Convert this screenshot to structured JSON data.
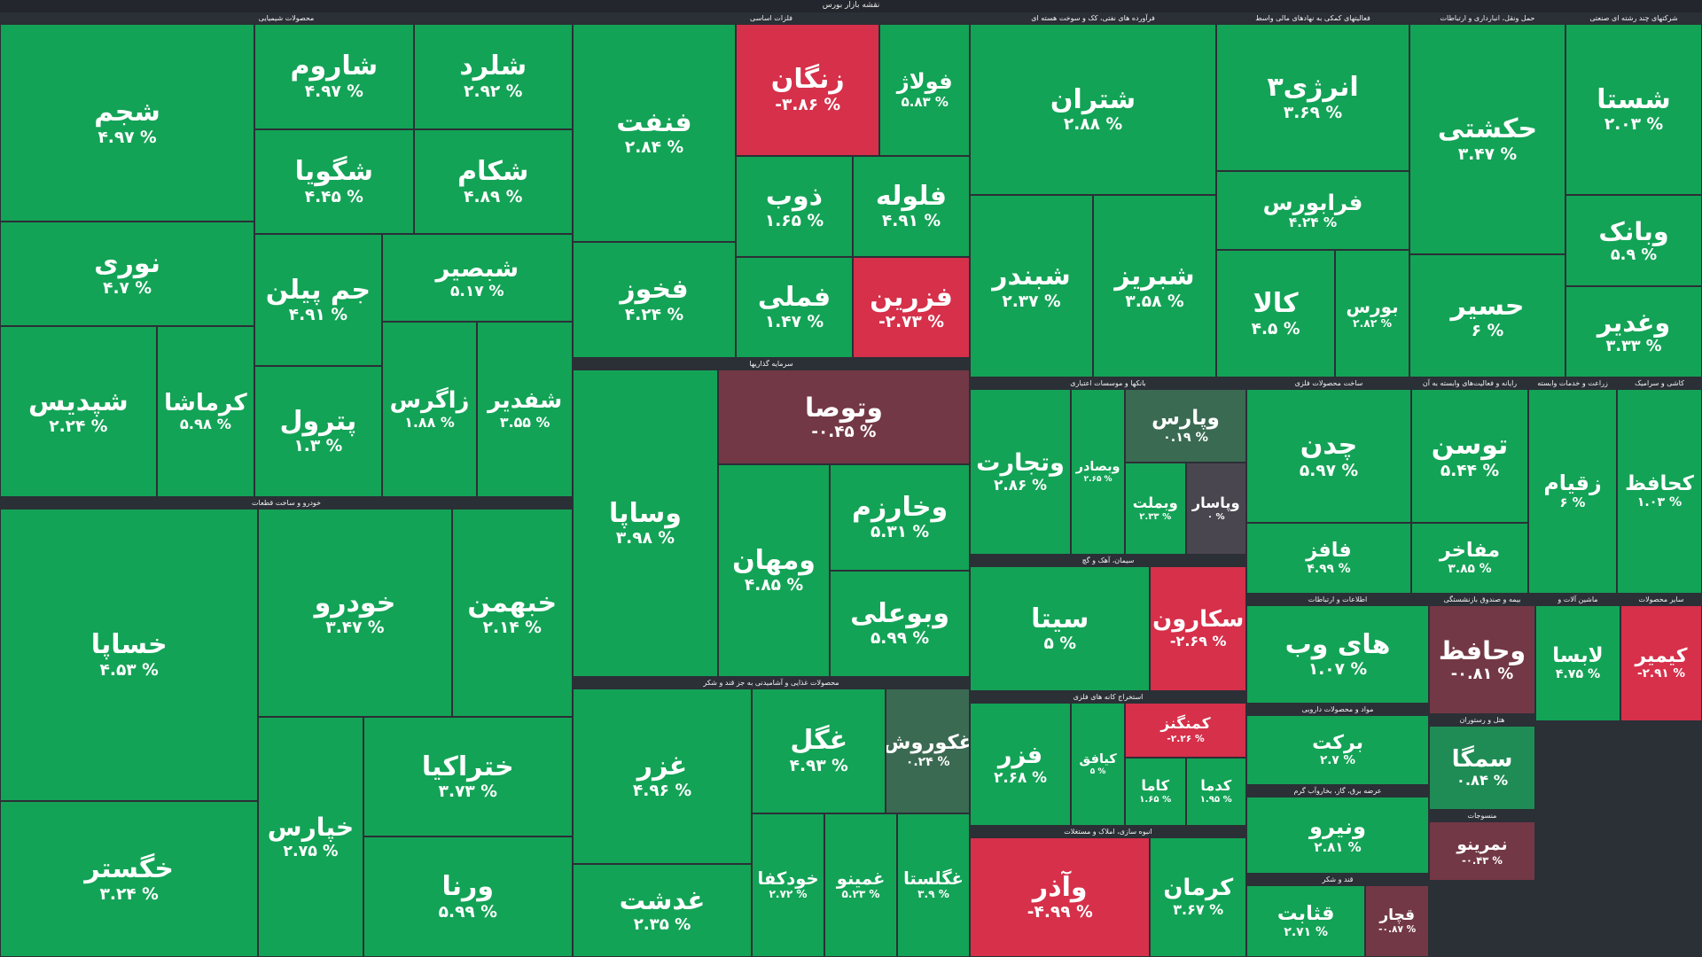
{
  "page": {
    "title": "نقشه بازار بورس"
  },
  "colors": {
    "up": "#13a356",
    "up_soft": "#1f8c55",
    "flat": "#3b6a52",
    "neutral": "#4a4650",
    "down": "#d6304a",
    "down_soft": "#733845"
  },
  "chart_data": {
    "type": "treemap",
    "title": "نقشه بازار بورس",
    "sectors": [
      {
        "name": "محصولات شیمیایی",
        "stocks": [
          {
            "symbol": "شجم",
            "change": "۴.۹۷ %",
            "value": 4.97
          },
          {
            "symbol": "نوری",
            "change": "۴.۷ %",
            "value": 4.7
          },
          {
            "symbol": "شپدیس",
            "change": "۲.۲۴ %",
            "value": 2.24
          },
          {
            "symbol": "کرماشا",
            "change": "۵.۹۸ %",
            "value": 5.98
          },
          {
            "symbol": "شاروم",
            "change": "۴.۹۷ %",
            "value": 4.97
          },
          {
            "symbol": "شگویا",
            "change": "۴.۴۵ %",
            "value": 4.45
          },
          {
            "symbol": "شلرد",
            "change": "۲.۹۲ %",
            "value": 2.92
          },
          {
            "symbol": "شکام",
            "change": "۴.۸۹ %",
            "value": 4.89
          },
          {
            "symbol": "جم پیلن",
            "change": "۴.۹۱ %",
            "value": 4.91
          },
          {
            "symbol": "پترول",
            "change": "۱.۳ %",
            "value": 1.3
          },
          {
            "symbol": "شبصیر",
            "change": "۵.۱۷ %",
            "value": 5.17
          },
          {
            "symbol": "زاگرس",
            "change": "۱.۸۸ %",
            "value": 1.88
          },
          {
            "symbol": "شفدیر",
            "change": "۳.۵۵ %",
            "value": 3.55
          }
        ]
      },
      {
        "name": "فلزات اساسی",
        "stocks": [
          {
            "symbol": "فنفت",
            "change": "۲.۸۴ %",
            "value": 2.84
          },
          {
            "symbol": "فخوز",
            "change": "۴.۲۴ %",
            "value": 4.24
          },
          {
            "symbol": "زنگان",
            "change": "-۳.۸۶ %",
            "value": -3.86
          },
          {
            "symbol": "فولاژ",
            "change": "۵.۸۳ %",
            "value": 5.83
          },
          {
            "symbol": "ذوب",
            "change": "۱.۶۵ %",
            "value": 1.65
          },
          {
            "symbol": "فملی",
            "change": "۱.۴۷ %",
            "value": 1.47
          },
          {
            "symbol": "فلوله",
            "change": "۴.۹۱ %",
            "value": 4.91
          },
          {
            "symbol": "فزرین",
            "change": "-۲.۷۳ %",
            "value": -2.73
          }
        ]
      },
      {
        "name": "فرآورده های نفتی، کک و سوخت هسته ای",
        "stocks": [
          {
            "symbol": "شتران",
            "change": "۲.۸۸ %",
            "value": 2.88
          },
          {
            "symbol": "شبندر",
            "change": "۲.۳۷ %",
            "value": 2.37
          },
          {
            "symbol": "شبریز",
            "change": "۳.۵۸ %",
            "value": 3.58
          }
        ]
      },
      {
        "name": "فعالیتهای کمکی به نهادهای مالی واسط",
        "stocks": [
          {
            "symbol": "انرژی۳",
            "change": "۳.۶۹ %",
            "value": 3.69
          },
          {
            "symbol": "فرابورس",
            "change": "۴.۲۴ %",
            "value": 4.24
          },
          {
            "symbol": "کالا",
            "change": "۴.۵ %",
            "value": 4.5
          },
          {
            "symbol": "بورس",
            "change": "۲.۸۲ %",
            "value": 2.82
          }
        ]
      },
      {
        "name": "حمل ونقل، انبارداری و ارتباطات",
        "stocks": [
          {
            "symbol": "حکشتی",
            "change": "۳.۴۷ %",
            "value": 3.47
          },
          {
            "symbol": "حسیر",
            "change": "۶ %",
            "value": 6
          }
        ]
      },
      {
        "name": "شرکتهای چند رشته ای صنعتی",
        "stocks": [
          {
            "symbol": "شستا",
            "change": "۲.۰۳ %",
            "value": 2.03
          },
          {
            "symbol": "وبانک",
            "change": "۵.۹ %",
            "value": 5.9
          },
          {
            "symbol": "وغدیر",
            "change": "۳.۳۳ %",
            "value": 3.33
          }
        ]
      },
      {
        "name": "خودرو و ساخت قطعات",
        "stocks": [
          {
            "symbol": "خساپا",
            "change": "۴.۵۳ %",
            "value": 4.53
          },
          {
            "symbol": "خگستر",
            "change": "۳.۲۴ %",
            "value": 3.24
          },
          {
            "symbol": "خودرو",
            "change": "۳.۴۷ %",
            "value": 3.47
          },
          {
            "symbol": "خبهمن",
            "change": "۲.۱۴ %",
            "value": 2.14
          },
          {
            "symbol": "خپارس",
            "change": "۲.۷۵ %",
            "value": 2.75
          },
          {
            "symbol": "ختراکیا",
            "change": "۳.۷۳ %",
            "value": 3.73
          },
          {
            "symbol": "ورنا",
            "change": "۵.۹۹ %",
            "value": 5.99
          }
        ]
      },
      {
        "name": "سرمایه گذاریها",
        "stocks": [
          {
            "symbol": "وساپا",
            "change": "۳.۹۸ %",
            "value": 3.98
          },
          {
            "symbol": "وتوصا",
            "change": "-۰.۴۵ %",
            "value": -0.45
          },
          {
            "symbol": "ومهان",
            "change": "۴.۸۵ %",
            "value": 4.85
          },
          {
            "symbol": "وخارزم",
            "change": "۵.۳۱ %",
            "value": 5.31
          },
          {
            "symbol": "وبوعلی",
            "change": "۵.۹۹ %",
            "value": 5.99
          }
        ]
      },
      {
        "name": "محصولات غذایی و آشامیدنی به جز قند و شکر",
        "stocks": [
          {
            "symbol": "غزر",
            "change": "۴.۹۶ %",
            "value": 4.96
          },
          {
            "symbol": "غدشت",
            "change": "۲.۳۵ %",
            "value": 2.35
          },
          {
            "symbol": "غگل",
            "change": "۴.۹۳ %",
            "value": 4.93
          },
          {
            "symbol": "غکوروش",
            "change": "۰.۲۴ %",
            "value": 0.24
          },
          {
            "symbol": "خودکفا",
            "change": "۲.۷۲ %",
            "value": 2.72
          },
          {
            "symbol": "غمینو",
            "change": "۵.۲۳ %",
            "value": 5.23
          },
          {
            "symbol": "غگلستا",
            "change": "۳.۹ %",
            "value": 3.9
          }
        ]
      },
      {
        "name": "بانکها و موسسات اعتباری",
        "stocks": [
          {
            "symbol": "وتجارت",
            "change": "۲.۸۶ %",
            "value": 2.86
          },
          {
            "symbol": "وبصادر",
            "change": "۲.۶۵ %",
            "value": 2.65
          },
          {
            "symbol": "وپارس",
            "change": "۰.۱۹ %",
            "value": 0.19
          },
          {
            "symbol": "وبملت",
            "change": "۲.۳۳ %",
            "value": 2.33
          },
          {
            "symbol": "وپاسار",
            "change": "۰ %",
            "value": 0
          }
        ]
      },
      {
        "name": "سیمان، آهک و گچ",
        "stocks": [
          {
            "symbol": "سیتا",
            "change": "۵ %",
            "value": 5
          },
          {
            "symbol": "سکارون",
            "change": "-۲.۶۹ %",
            "value": -2.69
          }
        ]
      },
      {
        "name": "استخراج کانه های فلزی",
        "stocks": [
          {
            "symbol": "فزر",
            "change": "۲.۶۸ %",
            "value": 2.68
          },
          {
            "symbol": "کیافق",
            "change": "۵ %",
            "value": 5
          },
          {
            "symbol": "کمنگنز",
            "change": "-۲.۲۶ %",
            "value": -2.26
          },
          {
            "symbol": "کاما",
            "change": "۱.۶۵ %",
            "value": 1.65
          },
          {
            "symbol": "کدما",
            "change": "۱.۹۵ %",
            "value": 1.95
          }
        ]
      },
      {
        "name": "انبوه سازی، املاک و مستغلات",
        "stocks": [
          {
            "symbol": "وآذر",
            "change": "-۴.۹۹ %",
            "value": -4.99
          },
          {
            "symbol": "کرمان",
            "change": "۳.۶۷ %",
            "value": 3.67
          }
        ]
      },
      {
        "name": "ساخت محصولات فلزی",
        "stocks": [
          {
            "symbol": "چدن",
            "change": "۵.۹۷ %",
            "value": 5.97
          },
          {
            "symbol": "فافز",
            "change": "۴.۹۹ %",
            "value": 4.99
          }
        ]
      },
      {
        "name": "رایانه و فعالیت‌های وابسته به آن",
        "stocks": [
          {
            "symbol": "توسن",
            "change": "۵.۴۴ %",
            "value": 5.44
          },
          {
            "symbol": "مفاخر",
            "change": "۳.۸۵ %",
            "value": 3.85
          }
        ]
      },
      {
        "name": "زراعت و خدمات وابسته",
        "stocks": [
          {
            "symbol": "زقیام",
            "change": "۶ %",
            "value": 6
          }
        ]
      },
      {
        "name": "کاشی و سرامیک",
        "stocks": [
          {
            "symbol": "کحافظ",
            "change": "۱.۰۳ %",
            "value": 1.03
          }
        ]
      },
      {
        "name": "اطلاعات و ارتباطات",
        "stocks": [
          {
            "symbol": "های وب",
            "change": "۱.۰۷ %",
            "value": 1.07
          }
        ]
      },
      {
        "name": "بیمه و صندوق بازنشستگی",
        "stocks": [
          {
            "symbol": "وحافظ",
            "change": "-۰.۸۱ %",
            "value": -0.81
          }
        ]
      },
      {
        "name": "هتل و رستوران",
        "stocks": [
          {
            "symbol": "سمگا",
            "change": "۰.۸۴ %",
            "value": 0.84
          }
        ]
      },
      {
        "name": "ماشین آلات و",
        "stocks": [
          {
            "symbol": "لابسا",
            "change": "۴.۷۵ %",
            "value": 4.75
          }
        ]
      },
      {
        "name": "سایر محصولات",
        "stocks": [
          {
            "symbol": "کیمیر",
            "change": "-۲.۹۱ %",
            "value": -2.91
          }
        ]
      },
      {
        "name": "منسوجات",
        "stocks": [
          {
            "symbol": "نمرینو",
            "change": "-۰.۴۳ %",
            "value": -0.43
          }
        ]
      },
      {
        "name": "عرضه برق، گاز، بخاروآب گرم",
        "stocks": [
          {
            "symbol": "ونیرو",
            "change": "۲.۸۱ %",
            "value": 2.81
          }
        ]
      },
      {
        "name": "قند و شکر",
        "stocks": [
          {
            "symbol": "قثابت",
            "change": "۲.۷۱ %",
            "value": 2.71
          },
          {
            "symbol": "قچار",
            "change": "-۰.۸۷ %",
            "value": -0.87
          }
        ]
      },
      {
        "name": "مواد و محصولات دارویی",
        "stocks": [
          {
            "symbol": "برکت",
            "change": "۲.۷ %",
            "value": 2.7
          }
        ]
      }
    ]
  }
}
